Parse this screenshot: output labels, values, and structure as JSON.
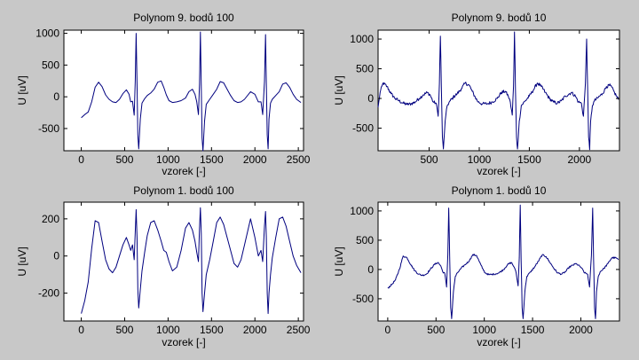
{
  "figure": {
    "background": "#c8c8c8",
    "line_color": "#00007f"
  },
  "chart_data": [
    {
      "type": "line",
      "title": "Polynom 9. bodů 100",
      "xlabel": "vzorek [-]",
      "ylabel": "U [uV]",
      "xlim": [
        -200,
        2560
      ],
      "ylim": [
        -850,
        1050
      ],
      "xticks": [
        0,
        500,
        1000,
        1500,
        2000,
        2500
      ],
      "yticks": [
        -500,
        0,
        500,
        1000
      ],
      "noise": 0,
      "series": [
        {
          "x": [
            0,
            40,
            80,
            120,
            160,
            200,
            240,
            280,
            320,
            360,
            400,
            440,
            480,
            520,
            550,
            570,
            590,
            610,
            622,
            632,
            642,
            652,
            662,
            680,
            700,
            730,
            760,
            800,
            840,
            880,
            920,
            950,
            980,
            1010,
            1050,
            1100,
            1150,
            1200,
            1240,
            1280,
            1310,
            1330,
            1350,
            1362,
            1372,
            1382,
            1392,
            1402,
            1420,
            1440,
            1480,
            1520,
            1560,
            1600,
            1640,
            1680,
            1720,
            1760,
            1800,
            1840,
            1880,
            1950,
            2000,
            2040,
            2070,
            2090,
            2110,
            2122,
            2132,
            2142,
            2152,
            2162,
            2180,
            2200,
            2240,
            2280,
            2320,
            2360,
            2400,
            2440,
            2480,
            2530
          ],
          "y": [
            -330,
            -280,
            -240,
            -80,
            150,
            230,
            160,
            30,
            -40,
            -80,
            -90,
            -40,
            50,
            110,
            40,
            -80,
            -70,
            -290,
            250,
            1000,
            200,
            -600,
            -820,
            -350,
            -100,
            -30,
            20,
            60,
            120,
            230,
            250,
            150,
            30,
            -60,
            -90,
            -80,
            -60,
            -20,
            80,
            120,
            40,
            -80,
            -280,
            200,
            1020,
            150,
            -650,
            -850,
            -380,
            -120,
            -40,
            40,
            120,
            240,
            220,
            120,
            20,
            -60,
            -90,
            -80,
            -40,
            80,
            40,
            -80,
            -80,
            -280,
            240,
            980,
            200,
            -600,
            -820,
            -350,
            -100,
            -40,
            20,
            80,
            200,
            220,
            150,
            40,
            -40,
            -90
          ]
        }
      ]
    },
    {
      "type": "line",
      "title": "Polynom 9. bodů 10",
      "xlabel": "vzorek [-]",
      "ylabel": "U [uV]",
      "xlim": [
        -10,
        2400
      ],
      "ylim": [
        -880,
        1150
      ],
      "xticks": [
        500,
        1000,
        1500,
        2000
      ],
      "yticks": [
        -500,
        0,
        500,
        1000
      ],
      "noise": 28,
      "series": [
        {
          "x": [
            -10,
            10,
            40,
            80,
            120,
            160,
            200,
            240,
            280,
            320,
            360,
            400,
            440,
            480,
            510,
            540,
            570,
            590,
            602,
            612,
            622,
            632,
            642,
            660,
            680,
            710,
            740,
            780,
            820,
            860,
            900,
            930,
            960,
            990,
            1030,
            1080,
            1130,
            1180,
            1220,
            1260,
            1290,
            1310,
            1330,
            1342,
            1352,
            1362,
            1372,
            1382,
            1400,
            1420,
            1460,
            1500,
            1540,
            1580,
            1620,
            1660,
            1700,
            1740,
            1780,
            1820,
            1860,
            1920,
            1960,
            1990,
            2020,
            2040,
            2060,
            2072,
            2082,
            2092,
            2102,
            2112,
            2130,
            2150,
            2190,
            2230,
            2270,
            2310,
            2350,
            2390
          ],
          "y": [
            -150,
            100,
            260,
            200,
            80,
            0,
            -40,
            -80,
            -100,
            -90,
            -60,
            0,
            60,
            100,
            60,
            -60,
            -80,
            -300,
            250,
            1050,
            200,
            -650,
            -850,
            -380,
            -120,
            -40,
            20,
            80,
            160,
            260,
            220,
            120,
            20,
            -60,
            -90,
            -90,
            -60,
            0,
            100,
            120,
            40,
            -60,
            -280,
            200,
            1120,
            150,
            -650,
            -850,
            -380,
            -120,
            -40,
            40,
            140,
            260,
            200,
            100,
            0,
            -60,
            -80,
            -40,
            40,
            100,
            40,
            -60,
            -80,
            -300,
            250,
            1000,
            200,
            -650,
            -860,
            -380,
            -120,
            -40,
            20,
            80,
            200,
            220,
            100,
            -20
          ]
        }
      ]
    },
    {
      "type": "line",
      "title": "Polynom 1. bodů 100",
      "xlabel": "vzorek [-]",
      "ylabel": "U [uV]",
      "xlim": [
        -200,
        2560
      ],
      "ylim": [
        -350,
        290
      ],
      "xticks": [
        0,
        500,
        1000,
        1500,
        2000,
        2500
      ],
      "yticks": [
        -200,
        0,
        200
      ],
      "noise": 0,
      "series": [
        {
          "x": [
            0,
            40,
            80,
            120,
            160,
            200,
            240,
            280,
            320,
            360,
            400,
            440,
            480,
            520,
            550,
            570,
            590,
            610,
            622,
            632,
            642,
            652,
            662,
            680,
            700,
            730,
            760,
            800,
            840,
            880,
            920,
            950,
            980,
            1010,
            1050,
            1100,
            1150,
            1200,
            1240,
            1280,
            1310,
            1330,
            1350,
            1362,
            1372,
            1382,
            1392,
            1402,
            1420,
            1440,
            1480,
            1520,
            1560,
            1600,
            1640,
            1680,
            1720,
            1760,
            1800,
            1840,
            1880,
            1950,
            2000,
            2040,
            2070,
            2090,
            2110,
            2122,
            2132,
            2142,
            2152,
            2162,
            2180,
            2200,
            2240,
            2280,
            2320,
            2360,
            2400,
            2440,
            2480,
            2530
          ],
          "y": [
            -310,
            -240,
            -140,
            40,
            190,
            180,
            80,
            -20,
            -70,
            -90,
            -60,
            0,
            60,
            100,
            60,
            30,
            60,
            -20,
            130,
            250,
            100,
            -180,
            -280,
            -180,
            -80,
            20,
            110,
            180,
            190,
            140,
            80,
            30,
            20,
            -30,
            -80,
            -60,
            30,
            150,
            180,
            140,
            80,
            20,
            -30,
            150,
            260,
            120,
            -200,
            -300,
            -200,
            -100,
            -20,
            80,
            180,
            210,
            170,
            100,
            30,
            -40,
            -60,
            -20,
            60,
            200,
            100,
            0,
            30,
            -30,
            160,
            240,
            100,
            -200,
            -310,
            -200,
            -100,
            -10,
            100,
            200,
            210,
            160,
            80,
            0,
            -50,
            -90
          ]
        }
      ]
    },
    {
      "type": "line",
      "title": "Polynom 1. bodů 10",
      "xlabel": "vzorek [-]",
      "ylabel": "U [uV]",
      "xlim": [
        -100,
        2400
      ],
      "ylim": [
        -880,
        1150
      ],
      "xticks": [
        0,
        500,
        1000,
        1500,
        2000
      ],
      "yticks": [
        -500,
        0,
        500,
        1000
      ],
      "noise": 14,
      "series": [
        {
          "x": [
            0,
            40,
            80,
            120,
            160,
            200,
            240,
            280,
            320,
            360,
            400,
            440,
            480,
            520,
            550,
            570,
            590,
            610,
            622,
            632,
            642,
            652,
            662,
            680,
            700,
            730,
            760,
            800,
            840,
            880,
            920,
            950,
            980,
            1010,
            1050,
            1100,
            1150,
            1200,
            1240,
            1280,
            1310,
            1330,
            1350,
            1362,
            1372,
            1382,
            1392,
            1402,
            1420,
            1440,
            1480,
            1520,
            1560,
            1600,
            1640,
            1680,
            1720,
            1760,
            1800,
            1840,
            1880,
            1950,
            2000,
            2040,
            2070,
            2090,
            2110,
            2122,
            2132,
            2142,
            2152,
            2162,
            2180,
            2200,
            2240,
            2280,
            2320,
            2360,
            2390
          ],
          "y": [
            -320,
            -260,
            -180,
            0,
            230,
            200,
            80,
            -20,
            -80,
            -100,
            -80,
            0,
            80,
            120,
            60,
            -40,
            -60,
            -300,
            250,
            1050,
            200,
            -650,
            -840,
            -380,
            -120,
            -40,
            20,
            80,
            140,
            250,
            240,
            130,
            20,
            -60,
            -90,
            -80,
            -60,
            0,
            80,
            120,
            40,
            -60,
            -280,
            200,
            1100,
            150,
            -650,
            -840,
            -380,
            -120,
            -40,
            40,
            140,
            250,
            220,
            120,
            20,
            -60,
            -80,
            -40,
            40,
            100,
            40,
            -60,
            -80,
            -300,
            240,
            1050,
            200,
            -650,
            -840,
            -380,
            -120,
            -40,
            20,
            100,
            200,
            200,
            170
          ]
        }
      ]
    }
  ]
}
